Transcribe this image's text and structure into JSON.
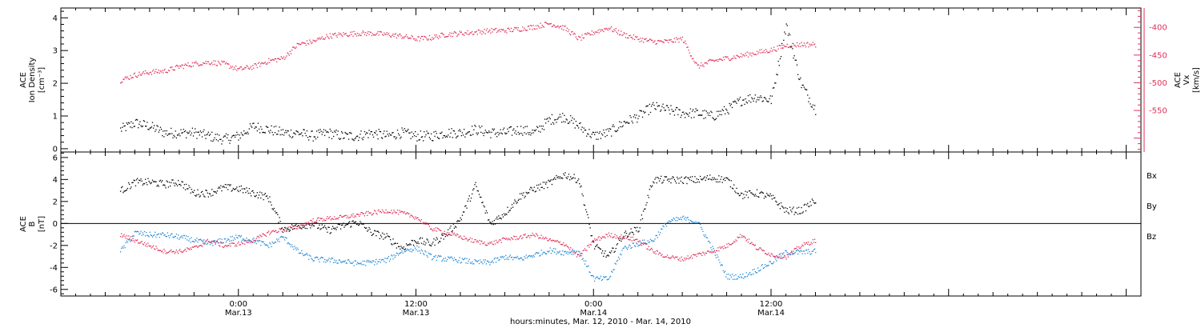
{
  "chart_data": [
    {
      "type": "scatter",
      "panel": "top",
      "ylabel": [
        "ACE",
        "Ion Density",
        "[cm⁻³]"
      ],
      "ylabel_right": [
        "ACE",
        "Vx",
        "[km/s]"
      ],
      "ylim": [
        -0.1,
        4.3
      ],
      "yticks": [
        0,
        1,
        2,
        3,
        4
      ],
      "ylim_right": [
        -625,
        -365
      ],
      "yticks_right": [
        -400,
        -450,
        -500,
        -550
      ],
      "colors": {
        "density": "#000000",
        "velocity": "#e0305a"
      },
      "series": [
        {
          "name": "Ion Density",
          "axis": "left",
          "color": "#000000",
          "x": [
            -8,
            -7,
            -6,
            -5,
            -4,
            -3,
            -2,
            -1,
            0,
            1,
            2,
            3,
            4,
            5,
            6,
            7,
            8,
            9,
            10,
            11,
            12,
            13,
            14,
            15,
            16,
            17,
            18,
            19,
            20,
            21,
            22,
            23,
            24,
            25,
            26,
            27,
            28,
            29,
            30,
            31,
            32,
            33,
            34,
            35,
            36,
            37,
            38,
            39
          ],
          "y": [
            0.6,
            0.8,
            0.7,
            0.5,
            0.5,
            0.5,
            0.4,
            0.3,
            0.4,
            0.7,
            0.6,
            0.5,
            0.5,
            0.4,
            0.5,
            0.4,
            0.4,
            0.5,
            0.4,
            0.5,
            0.4,
            0.4,
            0.5,
            0.5,
            0.6,
            0.5,
            0.5,
            0.6,
            0.5,
            0.9,
            1.0,
            0.7,
            0.4,
            0.5,
            0.8,
            1.0,
            1.3,
            1.2,
            1.1,
            1.1,
            1.0,
            1.2,
            1.5,
            1.6,
            1.5,
            3.8,
            2.0,
            1.2
          ]
        },
        {
          "name": "Vx",
          "axis": "right",
          "color": "#e0305a",
          "x": [
            -8,
            -7,
            -6,
            -5,
            -4,
            -3,
            -2,
            -1,
            0,
            1,
            2,
            3,
            4,
            5,
            6,
            7,
            8,
            9,
            10,
            11,
            12,
            13,
            14,
            15,
            16,
            17,
            18,
            19,
            20,
            21,
            22,
            23,
            24,
            25,
            26,
            27,
            28,
            29,
            30,
            31,
            32,
            33,
            34,
            35,
            36,
            37,
            38,
            39
          ],
          "y": [
            -495,
            -485,
            -480,
            -478,
            -470,
            -465,
            -462,
            -465,
            -475,
            -470,
            -460,
            -455,
            -430,
            -425,
            -415,
            -412,
            -410,
            -410,
            -412,
            -415,
            -420,
            -418,
            -412,
            -410,
            -408,
            -405,
            -405,
            -402,
            -398,
            -392,
            -400,
            -420,
            -408,
            -400,
            -412,
            -420,
            -425,
            -425,
            -420,
            -470,
            -460,
            -455,
            -450,
            -445,
            -440,
            -432,
            -430,
            -430
          ]
        }
      ]
    },
    {
      "type": "scatter",
      "panel": "bottom",
      "ylabel": [
        "ACE",
        "B",
        "[nT]"
      ],
      "ylim": [
        -6.6,
        6.5
      ],
      "yticks": [
        -6,
        -4,
        -2,
        0,
        2,
        4,
        6
      ],
      "zero_line": true,
      "colors": {
        "Bx": "#000000",
        "By": "#1e88d8",
        "Bz": "#e0305a"
      },
      "legend": [
        "Bx",
        "By",
        "Bz"
      ],
      "series": [
        {
          "name": "Bx",
          "color": "#000000",
          "x": [
            -8,
            -7,
            -6,
            -5,
            -4,
            -3,
            -2,
            -1,
            0,
            1,
            2,
            3,
            4,
            5,
            6,
            7,
            8,
            9,
            10,
            11,
            12,
            13,
            14,
            15,
            16,
            17,
            18,
            19,
            20,
            21,
            22,
            23,
            24,
            25,
            26,
            27,
            28,
            29,
            30,
            31,
            32,
            33,
            34,
            35,
            36,
            37,
            38,
            39
          ],
          "y": [
            3.0,
            3.8,
            3.8,
            3.6,
            3.8,
            2.8,
            2.8,
            3.3,
            3.2,
            2.8,
            2.4,
            -0.5,
            -0.2,
            0.0,
            -0.6,
            -0.2,
            0.2,
            -0.8,
            -1.2,
            -2.2,
            -1.5,
            -1.8,
            -1.0,
            0.5,
            3.5,
            0.0,
            1.0,
            2.5,
            3.2,
            3.7,
            4.5,
            4.0,
            -2.0,
            -3.0,
            -1.0,
            -0.5,
            4.0,
            4.0,
            4.0,
            4.0,
            4.2,
            4.0,
            2.6,
            2.8,
            2.4,
            1.2,
            1.2,
            2.2
          ]
        },
        {
          "name": "By",
          "color": "#1e88d8",
          "x": [
            -8,
            -7,
            -6,
            -5,
            -4,
            -3,
            -2,
            -1,
            0,
            1,
            2,
            3,
            4,
            5,
            6,
            7,
            8,
            9,
            10,
            11,
            12,
            13,
            14,
            15,
            16,
            17,
            18,
            19,
            20,
            21,
            22,
            23,
            24,
            25,
            26,
            27,
            28,
            29,
            30,
            31,
            32,
            33,
            34,
            35,
            36,
            37,
            38,
            39
          ],
          "y": [
            -2.5,
            -0.8,
            -1.0,
            -1.0,
            -1.2,
            -1.5,
            -1.8,
            -1.5,
            -1.2,
            -1.5,
            -2.0,
            -1.2,
            -2.5,
            -3.2,
            -3.3,
            -3.4,
            -3.6,
            -3.5,
            -3.3,
            -2.5,
            -2.2,
            -3.0,
            -3.2,
            -3.3,
            -3.5,
            -3.5,
            -3.0,
            -3.2,
            -2.8,
            -2.4,
            -2.6,
            -2.5,
            -5.0,
            -5.0,
            -2.2,
            -1.8,
            -1.5,
            0.2,
            0.5,
            0.2,
            -2.2,
            -4.8,
            -4.8,
            -4.2,
            -3.5,
            -2.6,
            -2.6,
            -2.5
          ]
        },
        {
          "name": "Bz",
          "color": "#e0305a",
          "x": [
            -8,
            -7,
            -6,
            -5,
            -4,
            -3,
            -2,
            -1,
            0,
            1,
            2,
            3,
            4,
            5,
            6,
            7,
            8,
            9,
            10,
            11,
            12,
            13,
            14,
            15,
            16,
            17,
            18,
            19,
            20,
            21,
            22,
            23,
            24,
            25,
            26,
            27,
            28,
            29,
            30,
            31,
            32,
            33,
            34,
            35,
            36,
            37,
            38,
            39
          ],
          "y": [
            -1.0,
            -1.5,
            -2.0,
            -2.5,
            -2.5,
            -2.2,
            -1.5,
            -2.0,
            -1.8,
            -1.5,
            -0.8,
            -0.5,
            -0.3,
            0.3,
            0.5,
            0.6,
            0.8,
            1.0,
            1.2,
            1.0,
            0.6,
            -0.4,
            -0.8,
            -1.2,
            -1.6,
            -1.8,
            -1.4,
            -1.2,
            -1.0,
            -1.5,
            -1.8,
            -3.0,
            -1.5,
            -1.0,
            -1.2,
            -1.5,
            -2.5,
            -3.0,
            -3.2,
            -2.8,
            -2.5,
            -2.0,
            -1.0,
            -2.2,
            -2.8,
            -3.0,
            -2.0,
            -1.5
          ]
        }
      ]
    }
  ],
  "x_axis": {
    "xlim": [
      -12,
      61
    ],
    "xlabel": "hours:minutes, Mar. 12, 2010 - Mar. 14, 2010",
    "major_ticks": [
      0,
      12,
      24,
      36,
      48,
      60
    ],
    "tick_labels": [
      {
        "x": 0,
        "time": "0:00",
        "date": "Mar.13"
      },
      {
        "x": 12,
        "time": "12:00",
        "date": "Mar.13"
      },
      {
        "x": 24,
        "time": "0:00",
        "date": "Mar.14"
      },
      {
        "x": 36,
        "time": "12:00",
        "date": "Mar.14"
      }
    ]
  },
  "legend_labels": {
    "bx": "Bx",
    "by": "By",
    "bz": "Bz"
  }
}
